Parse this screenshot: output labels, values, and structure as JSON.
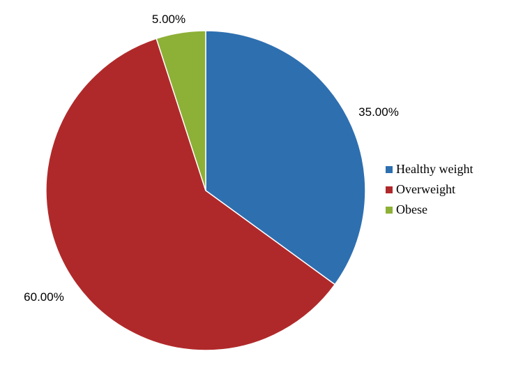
{
  "chart_data": {
    "type": "pie",
    "title": "",
    "categories": [
      "Healthy weight",
      "Overweight",
      "Obese"
    ],
    "values": [
      35.0,
      60.0,
      5.0
    ],
    "labels": [
      "35.00%",
      "60.00%",
      "5.00%"
    ],
    "colors": [
      "#2E6FB0",
      "#B0292A",
      "#8DB036"
    ],
    "start_angle_deg": 0,
    "direction": "clockwise",
    "legend": {
      "position": "right",
      "entries": [
        "Healthy weight",
        "Overweight",
        "Obese"
      ]
    }
  }
}
